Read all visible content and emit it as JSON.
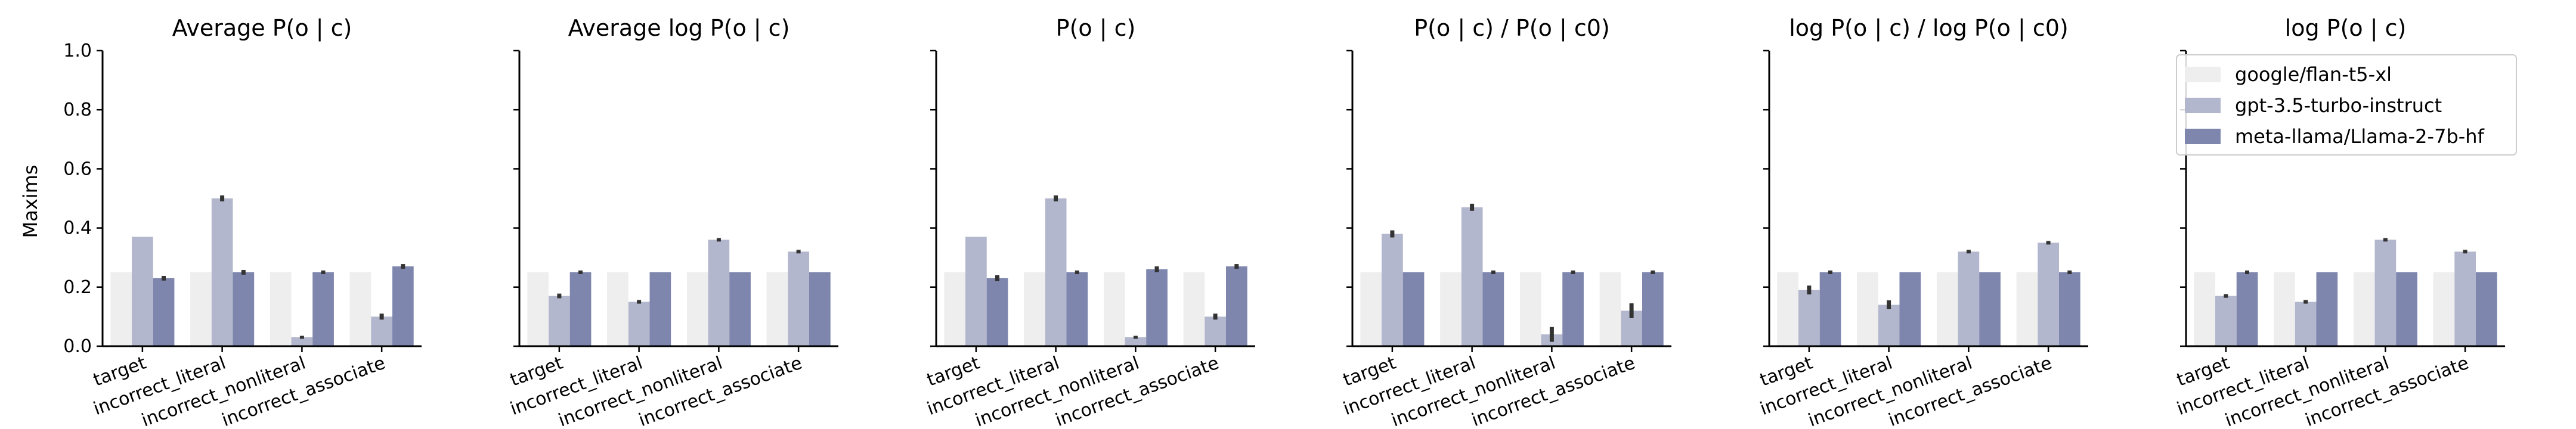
{
  "chart_data": {
    "type": "bar",
    "ylabel": "Maxims",
    "ylim": [
      0,
      1.0
    ],
    "yticks": [
      "0.0",
      "0.2",
      "0.4",
      "0.6",
      "0.8",
      "1.0"
    ],
    "categories": [
      "target",
      "incorrect_literal",
      "incorrect_nonliteral",
      "incorrect_associate"
    ],
    "legend": {
      "placement": "top-right",
      "entries": [
        {
          "name": "google/flan-t5-xl",
          "color": "#eeeeee"
        },
        {
          "name": "gpt-3.5-turbo-instruct",
          "color": "#b3b7cd"
        },
        {
          "name": "meta-llama/Llama-2-7b-hf",
          "color": "#7e86ae"
        }
      ]
    },
    "panels": [
      {
        "title": "Average P(o | c)",
        "series": [
          {
            "name": "google/flan-t5-xl",
            "values": [
              0.25,
              0.25,
              0.25,
              0.25
            ],
            "err": [
              0,
              0,
              0,
              0
            ]
          },
          {
            "name": "gpt-3.5-turbo-instruct",
            "values": [
              0.37,
              0.5,
              0.03,
              0.1
            ],
            "err": [
              0,
              0.01,
              0.005,
              0.01
            ]
          },
          {
            "name": "meta-llama/Llama-2-7b-hf",
            "values": [
              0.23,
              0.25,
              0.25,
              0.27
            ],
            "err": [
              0.008,
              0.008,
              0.006,
              0.008
            ]
          }
        ]
      },
      {
        "title": "Average log P(o | c)",
        "series": [
          {
            "name": "google/flan-t5-xl",
            "values": [
              0.25,
              0.25,
              0.25,
              0.25
            ],
            "err": [
              0,
              0,
              0,
              0
            ]
          },
          {
            "name": "gpt-3.5-turbo-instruct",
            "values": [
              0.17,
              0.15,
              0.36,
              0.32
            ],
            "err": [
              0.008,
              0.006,
              0.006,
              0.006
            ]
          },
          {
            "name": "meta-llama/Llama-2-7b-hf",
            "values": [
              0.25,
              0.25,
              0.25,
              0.25
            ],
            "err": [
              0.006,
              0,
              0,
              0
            ]
          }
        ]
      },
      {
        "title": "P(o | c)",
        "series": [
          {
            "name": "google/flan-t5-xl",
            "values": [
              0.25,
              0.25,
              0.25,
              0.25
            ],
            "err": [
              0,
              0,
              0,
              0
            ]
          },
          {
            "name": "gpt-3.5-turbo-instruct",
            "values": [
              0.37,
              0.5,
              0.03,
              0.1
            ],
            "err": [
              0,
              0.01,
              0.005,
              0.01
            ]
          },
          {
            "name": "meta-llama/Llama-2-7b-hf",
            "values": [
              0.23,
              0.25,
              0.26,
              0.27
            ],
            "err": [
              0.01,
              0.006,
              0.01,
              0.008
            ]
          }
        ]
      },
      {
        "title": "P(o | c) / P(o | c0)",
        "series": [
          {
            "name": "google/flan-t5-xl",
            "values": [
              0.25,
              0.25,
              0.25,
              0.25
            ],
            "err": [
              0,
              0,
              0,
              0
            ]
          },
          {
            "name": "gpt-3.5-turbo-instruct",
            "values": [
              0.38,
              0.47,
              0.04,
              0.12
            ],
            "err": [
              0.012,
              0.012,
              0.025,
              0.025
            ]
          },
          {
            "name": "meta-llama/Llama-2-7b-hf",
            "values": [
              0.25,
              0.25,
              0.25,
              0.25
            ],
            "err": [
              0,
              0.006,
              0.006,
              0.006
            ]
          }
        ]
      },
      {
        "title": "log P(o | c) / log P(o | c0)",
        "series": [
          {
            "name": "google/flan-t5-xl",
            "values": [
              0.25,
              0.25,
              0.25,
              0.25
            ],
            "err": [
              0,
              0,
              0,
              0
            ]
          },
          {
            "name": "gpt-3.5-turbo-instruct",
            "values": [
              0.19,
              0.14,
              0.32,
              0.35
            ],
            "err": [
              0.015,
              0.015,
              0.006,
              0.006
            ]
          },
          {
            "name": "meta-llama/Llama-2-7b-hf",
            "values": [
              0.25,
              0.25,
              0.25,
              0.25
            ],
            "err": [
              0.006,
              0,
              0,
              0.006
            ]
          }
        ]
      },
      {
        "title": "log P(o | c)",
        "series": [
          {
            "name": "google/flan-t5-xl",
            "values": [
              0.25,
              0.25,
              0.25,
              0.25
            ],
            "err": [
              0,
              0,
              0,
              0
            ]
          },
          {
            "name": "gpt-3.5-turbo-instruct",
            "values": [
              0.17,
              0.15,
              0.36,
              0.32
            ],
            "err": [
              0.006,
              0.006,
              0.006,
              0.006
            ]
          },
          {
            "name": "meta-llama/Llama-2-7b-hf",
            "values": [
              0.25,
              0.25,
              0.25,
              0.25
            ],
            "err": [
              0.006,
              0,
              0,
              0
            ]
          }
        ]
      }
    ]
  }
}
